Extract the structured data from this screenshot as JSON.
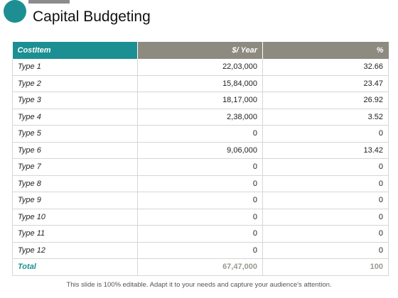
{
  "slide": {
    "title": "Capital Budgeting",
    "footer": "This slide is 100% editable. Adapt it to your needs and capture your audience's attention.",
    "accent_color": "#1c8f93",
    "header_secondary_color": "#8d8a80"
  },
  "table": {
    "headers": [
      "CostItem",
      "$/ Year",
      "%"
    ],
    "rows": [
      [
        "Type 1",
        "22,03,000",
        "32.66"
      ],
      [
        "Type 2",
        "15,84,000",
        "23.47"
      ],
      [
        "Type 3",
        "18,17,000",
        "26.92"
      ],
      [
        "Type 4",
        "2,38,000",
        "3.52"
      ],
      [
        "Type 5",
        "0",
        "0"
      ],
      [
        "Type 6",
        "9,06,000",
        "13.42"
      ],
      [
        "Type 7",
        "0",
        "0"
      ],
      [
        "Type 8",
        "0",
        "0"
      ],
      [
        "Type 9",
        "0",
        "0"
      ],
      [
        "Type 10",
        "0",
        "0"
      ],
      [
        "Type 11",
        "0",
        "0"
      ],
      [
        "Type 12",
        "0",
        "0"
      ]
    ],
    "total": [
      "Total",
      "67,47,000",
      "100"
    ]
  }
}
